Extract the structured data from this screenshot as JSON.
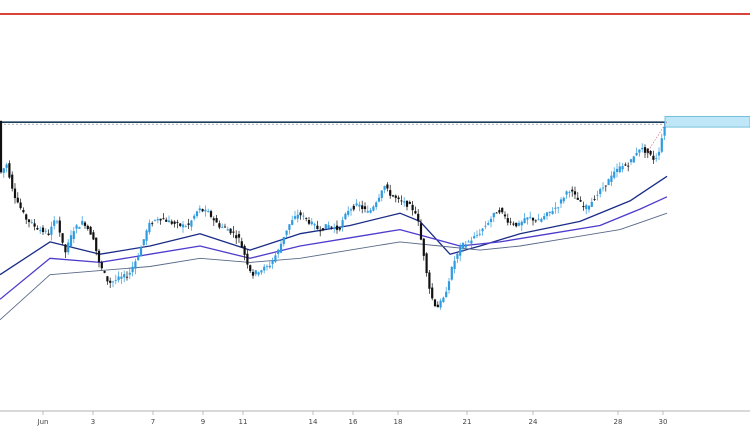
{
  "chart_data": {
    "type": "candlestick",
    "x_ticks": [
      "Jun",
      "3",
      "7",
      "9",
      "11",
      "14",
      "16",
      "18",
      "21",
      "24",
      "28",
      "30"
    ],
    "y_range": [
      0,
      100
    ],
    "grid": false,
    "colors": {
      "bull": "#2e9be0",
      "bear": "#111111",
      "resistance_line": "#d9443a",
      "level_line": "#1c3d5a",
      "zone_fill": "#bfe7f7",
      "zone_edge": "#5cb8d6",
      "ma_fast": "#1a2c86",
      "ma_mid": "#4e3ccc",
      "ma_slow": "#5a6a8a"
    },
    "levels": [
      {
        "kind": "resistance",
        "value": 96.6
      },
      {
        "kind": "level",
        "value": 70.2
      }
    ],
    "zone": {
      "x_start": 66.5,
      "x_end": 75,
      "y_low": 69.0,
      "y_high": 71.6
    },
    "price_path": [
      [
        0,
        57
      ],
      [
        0.8,
        60
      ],
      [
        1.5,
        53
      ],
      [
        2.6,
        47
      ],
      [
        3.5,
        45
      ],
      [
        4.1,
        44
      ],
      [
        5,
        43
      ],
      [
        5.8,
        47
      ],
      [
        6.6,
        38
      ],
      [
        7.5,
        44
      ],
      [
        8.5,
        46
      ],
      [
        9.5,
        42
      ],
      [
        10,
        36
      ],
      [
        11,
        31
      ],
      [
        12,
        32
      ],
      [
        13,
        33
      ],
      [
        14,
        38
      ],
      [
        15,
        45
      ],
      [
        16,
        47
      ],
      [
        17,
        46
      ],
      [
        18,
        45
      ],
      [
        19,
        45
      ],
      [
        20,
        49
      ],
      [
        21,
        48
      ],
      [
        22,
        45
      ],
      [
        23,
        44
      ],
      [
        24,
        42
      ],
      [
        24.6,
        38
      ],
      [
        25,
        35
      ],
      [
        25.4,
        33
      ],
      [
        26,
        34
      ],
      [
        27,
        35
      ],
      [
        28,
        39
      ],
      [
        28.6,
        43
      ],
      [
        29,
        45
      ],
      [
        30,
        48
      ],
      [
        31,
        46
      ],
      [
        32,
        44
      ],
      [
        33,
        45
      ],
      [
        34,
        44
      ],
      [
        35,
        49
      ],
      [
        36,
        50
      ],
      [
        37,
        48
      ],
      [
        38,
        52
      ],
      [
        38.5,
        55
      ],
      [
        39,
        53
      ],
      [
        40,
        51
      ],
      [
        41,
        50
      ],
      [
        41.8,
        48
      ],
      [
        42.2,
        42
      ],
      [
        42.6,
        37
      ],
      [
        43.2,
        28
      ],
      [
        43.8,
        25
      ],
      [
        44.5,
        27
      ],
      [
        45.5,
        36
      ],
      [
        46.3,
        40
      ],
      [
        47,
        41
      ],
      [
        48,
        43
      ],
      [
        49,
        46
      ],
      [
        50,
        49
      ],
      [
        51,
        46
      ],
      [
        52,
        45
      ],
      [
        53,
        47
      ],
      [
        54,
        46
      ],
      [
        55,
        48
      ],
      [
        56,
        50
      ],
      [
        57,
        54
      ],
      [
        58,
        51
      ],
      [
        58.6,
        49
      ],
      [
        59,
        50
      ],
      [
        60,
        53
      ],
      [
        61,
        56
      ],
      [
        62,
        59
      ],
      [
        63,
        60
      ],
      [
        63.6,
        62
      ],
      [
        64,
        64
      ],
      [
        64.8,
        63
      ],
      [
        65.6,
        61
      ],
      [
        66,
        63
      ],
      [
        66.7,
        70.5
      ]
    ],
    "moving_averages": [
      {
        "key": "ma_fast",
        "points": [
          [
            0,
            33
          ],
          [
            5,
            41
          ],
          [
            10,
            38
          ],
          [
            15,
            40
          ],
          [
            20,
            43
          ],
          [
            25,
            39
          ],
          [
            30,
            43
          ],
          [
            35,
            45
          ],
          [
            40,
            48
          ],
          [
            42,
            46
          ],
          [
            45,
            38
          ],
          [
            48,
            40
          ],
          [
            52,
            43
          ],
          [
            58,
            46
          ],
          [
            63,
            51
          ],
          [
            66.7,
            57
          ]
        ]
      },
      {
        "key": "ma_mid",
        "points": [
          [
            0,
            27
          ],
          [
            5,
            37
          ],
          [
            10,
            36
          ],
          [
            15,
            38
          ],
          [
            20,
            40
          ],
          [
            25,
            37
          ],
          [
            30,
            40
          ],
          [
            35,
            42
          ],
          [
            40,
            44
          ],
          [
            43,
            42
          ],
          [
            46,
            40
          ],
          [
            50,
            41
          ],
          [
            55,
            43
          ],
          [
            60,
            45
          ],
          [
            64,
            49
          ],
          [
            66.7,
            52
          ]
        ]
      },
      {
        "key": "ma_slow",
        "points": [
          [
            0,
            22
          ],
          [
            5,
            33
          ],
          [
            10,
            34
          ],
          [
            15,
            35
          ],
          [
            20,
            37
          ],
          [
            25,
            36
          ],
          [
            30,
            37
          ],
          [
            35,
            39
          ],
          [
            40,
            41
          ],
          [
            44,
            40
          ],
          [
            48,
            39
          ],
          [
            52,
            40
          ],
          [
            57,
            42
          ],
          [
            62,
            44
          ],
          [
            66.7,
            48
          ]
        ]
      }
    ]
  }
}
